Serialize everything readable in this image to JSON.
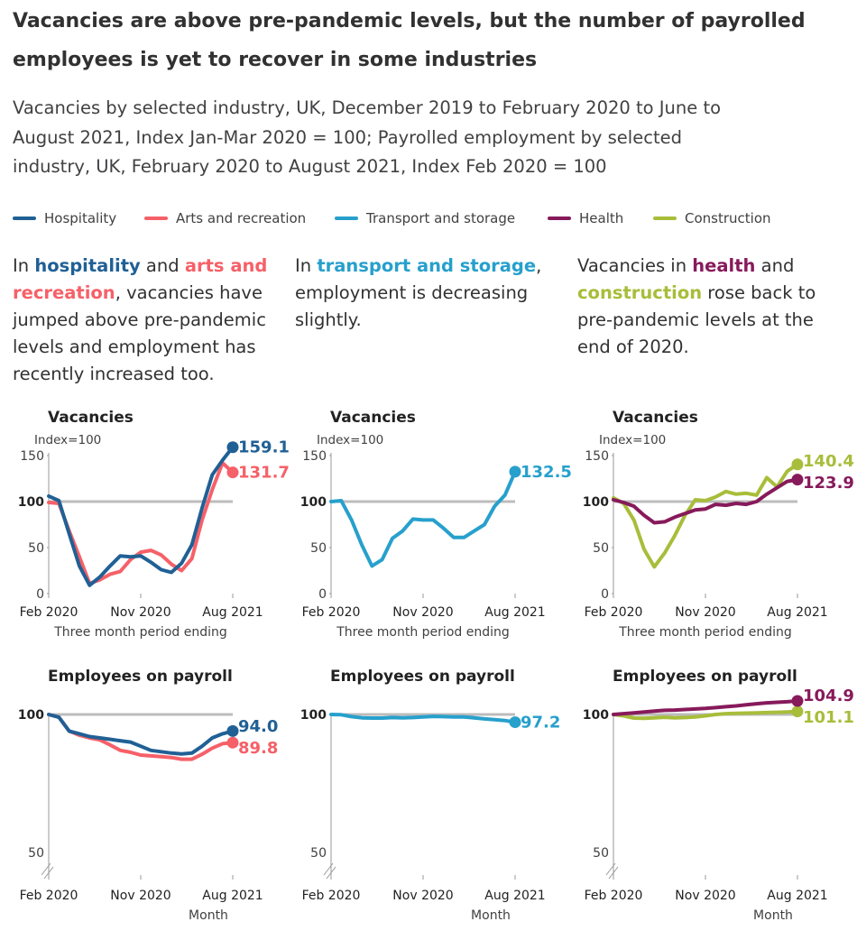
{
  "title": "Vacancies are above pre-pandemic levels, but the number of payrolled employees is yet to recover in some industries",
  "subtitle": "Vacancies by selected industry, UK, December 2019 to February 2020 to June to August 2021, Index Jan-Mar 2020 = 100; Payrolled employment by selected industry, UK, February 2020 to August 2021, Index Feb 2020 = 100",
  "colors": {
    "hospitality": "#206095",
    "arts": "#F66068",
    "transport": "#27A0CC",
    "health": "#871A5B",
    "construction": "#A8BD3A",
    "reference_line": "#bcbcbc",
    "axis_text": "#414042"
  },
  "legend": [
    {
      "key": "hospitality",
      "label": "Hospitality"
    },
    {
      "key": "arts",
      "label": "Arts and recreation"
    },
    {
      "key": "transport",
      "label": "Transport and storage"
    },
    {
      "key": "health",
      "label": "Health"
    },
    {
      "key": "construction",
      "label": "Construction"
    }
  ],
  "annotations": [
    {
      "parts": [
        {
          "t": "In "
        },
        {
          "t": "hospitality",
          "c": "hospitality"
        },
        {
          "t": " and "
        },
        {
          "t": "arts and recreation",
          "c": "arts"
        },
        {
          "t": ", vacancies have jumped above pre-pandemic levels and employment has recently increased too."
        }
      ]
    },
    {
      "parts": [
        {
          "t": "In "
        },
        {
          "t": "transport and storage",
          "c": "transport"
        },
        {
          "t": ", employment is decreasing slightly."
        }
      ]
    },
    {
      "parts": [
        {
          "t": "Vacancies in "
        },
        {
          "t": "health",
          "c": "health"
        },
        {
          "t": " and "
        },
        {
          "t": "construction",
          "c": "construction"
        },
        {
          "t": " rose back to pre-pandemic levels at the end of 2020."
        }
      ]
    }
  ],
  "chart_data": [
    {
      "type": "line",
      "title": "Vacancies",
      "ylabel": "Index=100",
      "xlabel": "Three month period ending",
      "x": [
        "Feb 2020",
        "Mar 2020",
        "Apr 2020",
        "May 2020",
        "Jun 2020",
        "Jul 2020",
        "Aug 2020",
        "Sep 2020",
        "Oct 2020",
        "Nov 2020",
        "Dec 2020",
        "Jan 2021",
        "Feb 2021",
        "Mar 2021",
        "Apr 2021",
        "May 2021",
        "Jun 2021",
        "Jul 2021",
        "Aug 2021"
      ],
      "x_ticks": [
        "Feb 2020",
        "Nov 2020",
        "Aug 2021"
      ],
      "y_ticks": [
        0,
        50,
        100,
        150
      ],
      "ylim": [
        0,
        160
      ],
      "series": [
        {
          "name": "Hospitality",
          "color_key": "hospitality",
          "label": "159.1",
          "values": [
            106,
            101,
            65,
            30,
            9,
            18,
            30,
            41,
            40,
            41,
            34,
            26,
            23,
            33,
            53,
            93,
            129,
            145,
            159.1
          ]
        },
        {
          "name": "Arts and recreation",
          "color_key": "arts",
          "label": "131.7",
          "values": [
            99,
            98,
            68,
            40,
            11,
            15,
            21,
            24,
            37,
            45,
            47,
            42,
            32,
            25,
            38,
            80,
            113,
            142,
            131.7
          ]
        }
      ]
    },
    {
      "type": "line",
      "title": "Vacancies",
      "ylabel": "Index=100",
      "xlabel": "Three month period ending",
      "x": [
        "Feb 2020",
        "Mar 2020",
        "Apr 2020",
        "May 2020",
        "Jun 2020",
        "Jul 2020",
        "Aug 2020",
        "Sep 2020",
        "Oct 2020",
        "Nov 2020",
        "Dec 2020",
        "Jan 2021",
        "Feb 2021",
        "Mar 2021",
        "Apr 2021",
        "May 2021",
        "Jun 2021",
        "Jul 2021",
        "Aug 2021"
      ],
      "x_ticks": [
        "Feb 2020",
        "Nov 2020",
        "Aug 2021"
      ],
      "y_ticks": [
        0,
        50,
        100,
        150
      ],
      "ylim": [
        0,
        160
      ],
      "series": [
        {
          "name": "Transport and storage",
          "color_key": "transport",
          "label": "132.5",
          "values": [
            100,
            101,
            80,
            53,
            30,
            37,
            60,
            68,
            81,
            80,
            80,
            71,
            61,
            61,
            68,
            75,
            95,
            107,
            132.5
          ]
        }
      ]
    },
    {
      "type": "line",
      "title": "Vacancies",
      "ylabel": "Index=100",
      "xlabel": "Three month period ending",
      "x": [
        "Feb 2020",
        "Mar 2020",
        "Apr 2020",
        "May 2020",
        "Jun 2020",
        "Jul 2020",
        "Aug 2020",
        "Sep 2020",
        "Oct 2020",
        "Nov 2020",
        "Dec 2020",
        "Jan 2021",
        "Feb 2021",
        "Mar 2021",
        "Apr 2021",
        "May 2021",
        "Jun 2021",
        "Jul 2021",
        "Aug 2021"
      ],
      "x_ticks": [
        "Feb 2020",
        "Nov 2020",
        "Aug 2021"
      ],
      "y_ticks": [
        0,
        50,
        100,
        150
      ],
      "ylim": [
        0,
        160
      ],
      "series": [
        {
          "name": "Health",
          "color_key": "health",
          "label": "123.9",
          "values": [
            102,
            99,
            95,
            85,
            77,
            78,
            83,
            87,
            91,
            92,
            97,
            96,
            98,
            97,
            100,
            108,
            115,
            122,
            123.9
          ]
        },
        {
          "name": "Construction",
          "color_key": "construction",
          "label": "140.4",
          "values": [
            104,
            98,
            80,
            48,
            29,
            44,
            63,
            85,
            102,
            101,
            105,
            111,
            108,
            109,
            107,
            126,
            116,
            133,
            140.4
          ]
        }
      ]
    },
    {
      "type": "line",
      "title": "Employees on payroll",
      "xlabel": "Month",
      "x": [
        "Feb 2020",
        "Mar 2020",
        "Apr 2020",
        "May 2020",
        "Jun 2020",
        "Jul 2020",
        "Aug 2020",
        "Sep 2020",
        "Oct 2020",
        "Nov 2020",
        "Dec 2020",
        "Jan 2021",
        "Feb 2021",
        "Mar 2021",
        "Apr 2021",
        "May 2021",
        "Jun 2021",
        "Jul 2021",
        "Aug 2021"
      ],
      "x_ticks": [
        "Feb 2020",
        "Nov 2020",
        "Aug 2021"
      ],
      "y_ticks": [
        50,
        100
      ],
      "ylim": [
        50,
        103
      ],
      "series": [
        {
          "name": "Hospitality",
          "color_key": "hospitality",
          "label": "94.0",
          "values": [
            100,
            99,
            94,
            93,
            92,
            91.5,
            91,
            90.5,
            90,
            88.5,
            87,
            86.5,
            86,
            85.7,
            86,
            88.5,
            91.5,
            93,
            94.0
          ]
        },
        {
          "name": "Arts and recreation",
          "color_key": "arts",
          "label": "89.8",
          "values": [
            100,
            99,
            94,
            92.5,
            91.5,
            90.8,
            89,
            87,
            86.3,
            85.3,
            85,
            84.7,
            84.4,
            83.8,
            83.8,
            85.6,
            87.8,
            89.4,
            89.8
          ]
        }
      ]
    },
    {
      "type": "line",
      "title": "Employees on payroll",
      "xlabel": "Month",
      "x": [
        "Feb 2020",
        "Mar 2020",
        "Apr 2020",
        "May 2020",
        "Jun 2020",
        "Jul 2020",
        "Aug 2020",
        "Sep 2020",
        "Oct 2020",
        "Nov 2020",
        "Dec 2020",
        "Jan 2021",
        "Feb 2021",
        "Mar 2021",
        "Apr 2021",
        "May 2021",
        "Jun 2021",
        "Jul 2021",
        "Aug 2021"
      ],
      "x_ticks": [
        "Feb 2020",
        "Nov 2020",
        "Aug 2021"
      ],
      "y_ticks": [
        50,
        100
      ],
      "ylim": [
        50,
        103
      ],
      "series": [
        {
          "name": "Transport and storage",
          "color_key": "transport",
          "label": "97.2",
          "values": [
            100,
            99.9,
            99.2,
            98.8,
            98.7,
            98.7,
            98.9,
            98.8,
            98.9,
            99.1,
            99.3,
            99.2,
            99.1,
            99.1,
            98.8,
            98.4,
            98.1,
            97.8,
            97.2
          ]
        }
      ]
    },
    {
      "type": "line",
      "title": "Employees on payroll",
      "xlabel": "Month",
      "x": [
        "Feb 2020",
        "Mar 2020",
        "Apr 2020",
        "May 2020",
        "Jun 2020",
        "Jul 2020",
        "Aug 2020",
        "Sep 2020",
        "Oct 2020",
        "Nov 2020",
        "Dec 2020",
        "Jan 2021",
        "Feb 2021",
        "Mar 2021",
        "Apr 2021",
        "May 2021",
        "Jun 2021",
        "Jul 2021",
        "Aug 2021"
      ],
      "x_ticks": [
        "Feb 2020",
        "Nov 2020",
        "Aug 2021"
      ],
      "y_ticks": [
        50,
        100
      ],
      "ylim": [
        50,
        103
      ],
      "series": [
        {
          "name": "Health",
          "color_key": "health",
          "label": "104.9",
          "values": [
            100,
            100.3,
            100.6,
            100.9,
            101.2,
            101.5,
            101.6,
            101.8,
            102,
            102.2,
            102.5,
            102.8,
            103.1,
            103.5,
            103.9,
            104.2,
            104.4,
            104.6,
            104.9
          ]
        },
        {
          "name": "Construction",
          "color_key": "construction",
          "label": "101.1",
          "values": [
            100,
            99.5,
            98.7,
            98.6,
            98.8,
            99,
            98.8,
            98.9,
            99.1,
            99.5,
            100,
            100.3,
            100.4,
            100.5,
            100.6,
            100.7,
            100.8,
            100.9,
            101.1
          ]
        }
      ]
    }
  ]
}
